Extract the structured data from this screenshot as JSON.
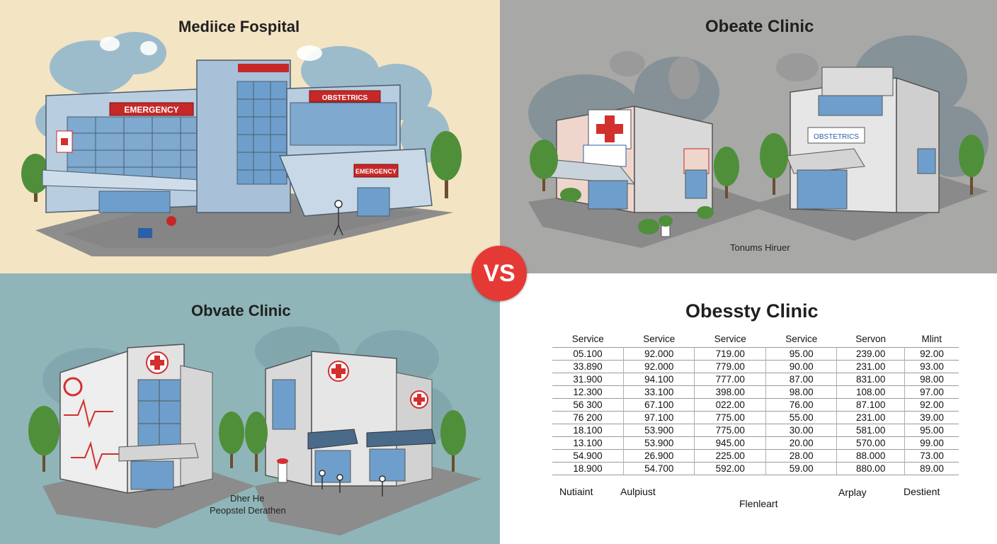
{
  "panels": {
    "top_left": {
      "title": "Mediice Fospital",
      "signs": [
        "EMERGENCY",
        "OBSTETRICS",
        "EMERGENCY"
      ]
    },
    "top_right": {
      "title": "Obeate Clinic",
      "caption": "Tonums Hiruer",
      "signs": [
        "OBSTETRICS",
        "OBSTETRICS"
      ]
    },
    "bottom_left": {
      "title": "Obvate Clinic",
      "caption_line1": "Dher He",
      "caption_line2": "Peopstel Derathen"
    },
    "bottom_right": {
      "title": "Obessty Clinic",
      "table": {
        "headers": [
          "Service",
          "Service",
          "Service",
          "Service",
          "Servon",
          "Mlint"
        ],
        "rows": [
          [
            "05.100",
            "92.000",
            "719.00",
            "95.00",
            "239.00",
            "92.00"
          ],
          [
            "33.890",
            "92.000",
            "779.00",
            "90.00",
            "231.00",
            "93.00"
          ],
          [
            "31.900",
            "94.100",
            "777.00",
            "87.00",
            "831.00",
            "98.00"
          ],
          [
            "12.300",
            "33.100",
            "398.00",
            "98.00",
            "108.00",
            "97.00"
          ],
          [
            "56 300",
            "67.100",
            "022.00",
            "76.00",
            "87.100",
            "92.00"
          ],
          [
            "76 200",
            "97.100",
            "775.00",
            "55.00",
            "231.00",
            "39.00"
          ],
          [
            "18.100",
            "53.900",
            "775.00",
            "30.00",
            "581.00",
            "95.00"
          ],
          [
            "13.100",
            "53.900",
            "945.00",
            "20.00",
            "570.00",
            "99.00"
          ],
          [
            "54.900",
            "26.900",
            "225.00",
            "28.00",
            "88.000",
            "73.00"
          ],
          [
            "18.900",
            "54.700",
            "592.00",
            "59.00",
            "880.00",
            "89.00"
          ]
        ]
      },
      "footer": {
        "col1": "Nutiaint",
        "col2": "Aulpiust",
        "center": "Flenleart",
        "col5": "Arplay",
        "col6": "Destient"
      }
    }
  },
  "vs_label": "VS",
  "colors": {
    "vs_badge": "#e53935",
    "cross_red": "#d32f2f",
    "sign_red": "#c62828",
    "glass_blue": "#6e9fcc"
  }
}
